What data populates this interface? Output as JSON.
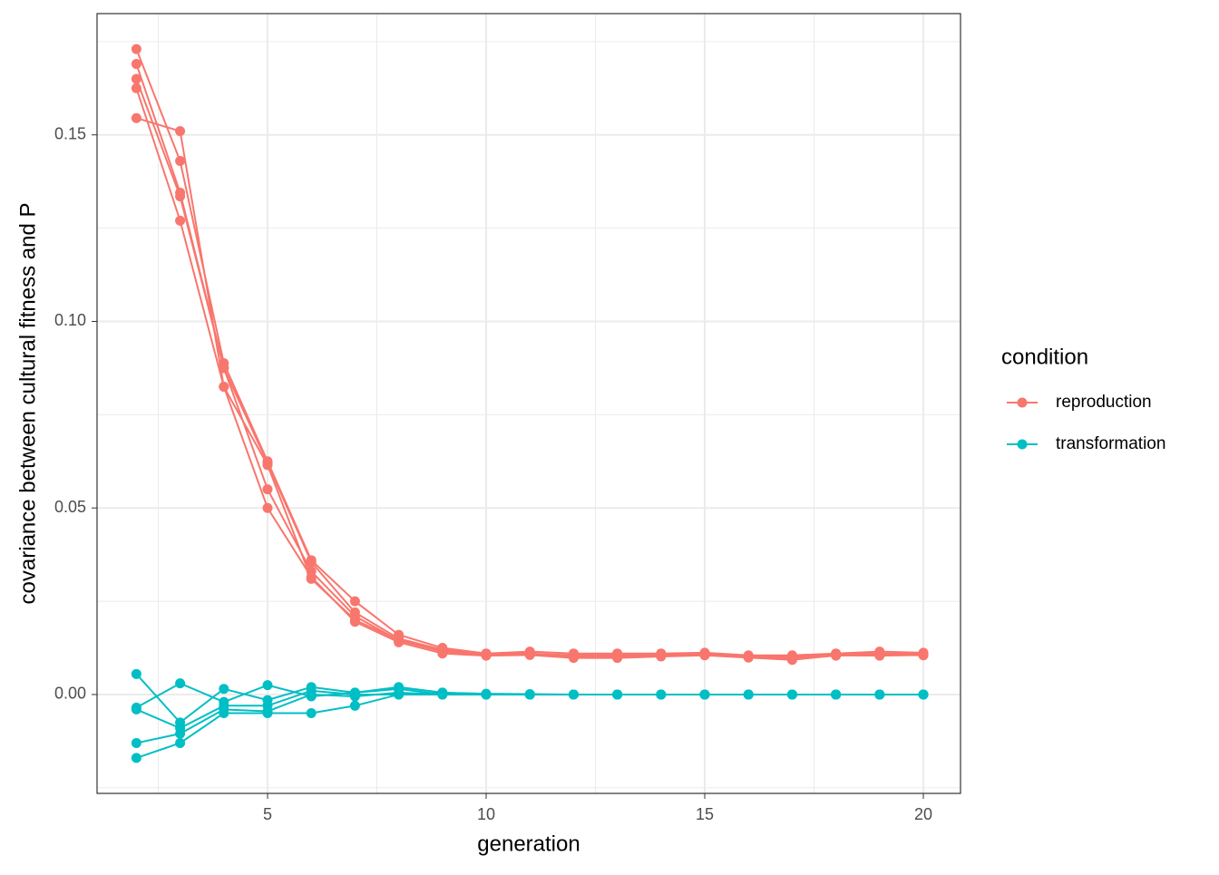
{
  "chart_data": {
    "type": "line",
    "x_label": "generation",
    "y_label": "covariance between cultural fitness and P",
    "x": [
      2,
      3,
      4,
      5,
      6,
      7,
      8,
      9,
      10,
      11,
      12,
      13,
      14,
      15,
      16,
      17,
      18,
      19,
      20
    ],
    "xlim": [
      1.1,
      20.85
    ],
    "xticks": [
      5,
      10,
      15,
      20
    ],
    "ylim": [
      -0.0265,
      0.1825
    ],
    "yticks": [
      {
        "value": 0,
        "label": "0.00"
      },
      {
        "value": 0.05,
        "label": "0.05"
      },
      {
        "value": 0.1,
        "label": "0.10"
      },
      {
        "value": 0.15,
        "label": "0.15"
      }
    ],
    "grid": true,
    "legend_title": "condition",
    "legend_position": "right",
    "series": [
      {
        "name": "reproduction",
        "color": "#F8766D",
        "values": [
          [
            0.173,
            0.143,
            0.0888,
            0.0625,
            0.036,
            0.025,
            0.016,
            0.0125,
            0.011,
            0.0115,
            0.011,
            0.011,
            0.011,
            0.0112,
            0.0105,
            0.0105,
            0.011,
            0.0115,
            0.0112
          ],
          [
            0.169,
            0.1345,
            0.0875,
            0.062,
            0.0355,
            0.022,
            0.015,
            0.012,
            0.0108,
            0.011,
            0.0105,
            0.0108,
            0.0108,
            0.011,
            0.0103,
            0.0102,
            0.0108,
            0.011,
            0.011
          ],
          [
            0.165,
            0.1335,
            0.0875,
            0.055,
            0.033,
            0.021,
            0.0145,
            0.0115,
            0.0105,
            0.0108,
            0.01,
            0.0105,
            0.0105,
            0.0108,
            0.01,
            0.0098,
            0.0106,
            0.0105,
            0.0108
          ],
          [
            0.1625,
            0.127,
            0.0825,
            0.05,
            0.0315,
            0.0195,
            0.014,
            0.011,
            0.0104,
            0.0106,
            0.0098,
            0.0098,
            0.0102,
            0.0105,
            0.0099,
            0.0093,
            0.0105,
            0.0104,
            0.0106
          ],
          [
            0.1545,
            0.151,
            0.0825,
            0.0615,
            0.031,
            0.02,
            0.0145,
            0.012,
            0.0106,
            0.0108,
            0.0102,
            0.0102,
            0.0104,
            0.0106,
            0.0101,
            0.0096,
            0.0104,
            0.0107,
            0.0105
          ]
        ]
      },
      {
        "name": "transformation",
        "color": "#00BFC4",
        "values": [
          [
            0.0055,
            -0.0075,
            0.0015,
            -0.0015,
            0.002,
            0.0005,
            0.002,
            0.0005,
            0.0002,
            0.0001,
            0,
            0,
            0,
            0,
            0,
            0,
            0,
            0,
            0
          ],
          [
            -0.0035,
            0.003,
            -0.002,
            0.0025,
            -0.0005,
            0.0005,
            0.0015,
            0,
            0,
            0,
            0,
            0,
            0,
            0,
            0,
            0,
            0,
            0,
            0
          ],
          [
            -0.004,
            -0.009,
            -0.003,
            -0.003,
            0.001,
            0,
            0,
            0.0005,
            0,
            0,
            0,
            0,
            0,
            0,
            0,
            0,
            0,
            0,
            0
          ],
          [
            -0.013,
            -0.0105,
            -0.004,
            -0.0045,
            0,
            -0.0005,
            0.0005,
            0,
            0,
            0,
            0,
            0,
            0,
            0,
            0,
            0,
            0,
            0,
            0
          ],
          [
            -0.017,
            -0.013,
            -0.005,
            -0.005,
            -0.005,
            -0.003,
            0,
            0,
            0,
            0,
            0,
            0,
            0,
            0,
            0,
            0,
            0,
            0,
            0
          ]
        ]
      }
    ]
  }
}
